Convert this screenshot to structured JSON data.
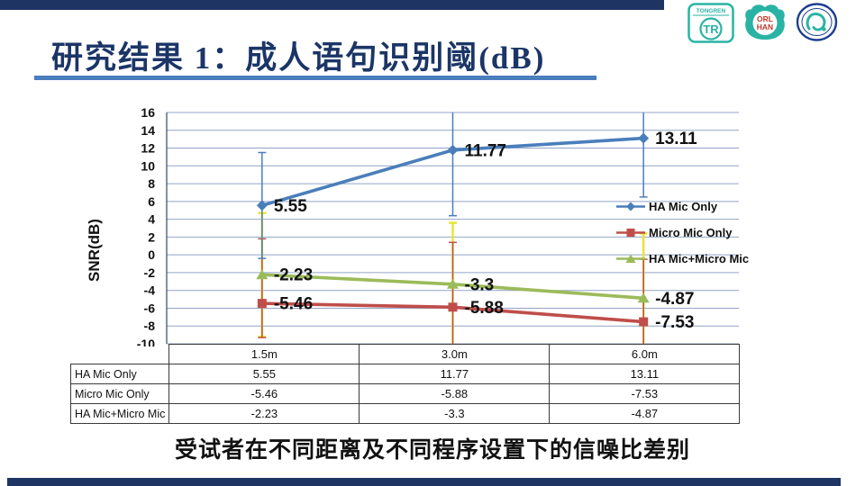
{
  "slide": {
    "title": "研究结果 1：成人语句识别阈(dB)",
    "caption": "受试者在不同距离及不同程序设置下的信噪比差别"
  },
  "logos": {
    "tongren_text": "TONGREN",
    "tongren_monogram": "TR",
    "orl_line1": "ORL",
    "orl_line2": "HAN"
  },
  "colors": {
    "navy_bar": "#1e3564",
    "title": "#1b3567",
    "underline": "#4a7ebd",
    "gridline": "#92a4c6",
    "axis": "#41547a",
    "series_blue": "#4a7ebb",
    "series_red": "#bf4e4a",
    "series_green": "#9bbb59",
    "error_yellow": "#e7e42f",
    "logo_teal": "#29b3a4",
    "logo_red": "#c03a2b",
    "emblem_blue": "#1e3f8f",
    "label_text": "#111111"
  },
  "chart_data": {
    "type": "line",
    "title": "",
    "xlabel": "",
    "ylabel": "SNR(dB)",
    "categories": [
      "1.5m",
      "3.0m",
      "6.0m"
    ],
    "ylim": [
      -10,
      16
    ],
    "ytick_step": 2,
    "grid": true,
    "legend_position": "right-inside",
    "series": [
      {
        "name": "HA Mic Only",
        "marker": "diamond",
        "color": "#4a7ebb",
        "values": [
          5.55,
          11.77,
          13.11
        ],
        "labels": [
          "5.55",
          "11.77",
          "13.11"
        ],
        "error_ranges": [
          [
            -0.4,
            11.5
          ],
          [
            4.4,
            16.3
          ],
          [
            6.5,
            17
          ]
        ]
      },
      {
        "name": "Micro Mic Only",
        "marker": "square",
        "color": "#bf4e4a",
        "values": [
          -5.46,
          -5.88,
          -7.53
        ],
        "labels": [
          "-5.46",
          "-5.88",
          "-7.53"
        ],
        "error_ranges": [
          [
            -9.3,
            1.8
          ],
          [
            -11,
            1.4
          ],
          [
            -11,
            -0.5
          ]
        ]
      },
      {
        "name": "HA Mic+Micro Mic",
        "marker": "triangle",
        "color": "#9bbb59",
        "error_color": "#e7e42f",
        "values": [
          -2.23,
          -3.3,
          -4.87
        ],
        "labels": [
          "-2.23",
          "-3.3",
          "-4.87"
        ],
        "error_ranges": [
          [
            -9.2,
            4.7
          ],
          [
            -11,
            3.6
          ],
          [
            -11,
            2.4
          ]
        ]
      }
    ]
  },
  "table": {
    "header": [
      "",
      "1.5m",
      "3.0m",
      "6.0m"
    ],
    "rows": [
      {
        "label": "HA Mic Only",
        "values": [
          "5.55",
          "11.77",
          "13.11"
        ]
      },
      {
        "label": "Micro Mic Only",
        "values": [
          "-5.46",
          "-5.88",
          "-7.53"
        ]
      },
      {
        "label": "HA Mic+Micro Mic",
        "values": [
          "-2.23",
          "-3.3",
          "-4.87"
        ]
      }
    ]
  }
}
